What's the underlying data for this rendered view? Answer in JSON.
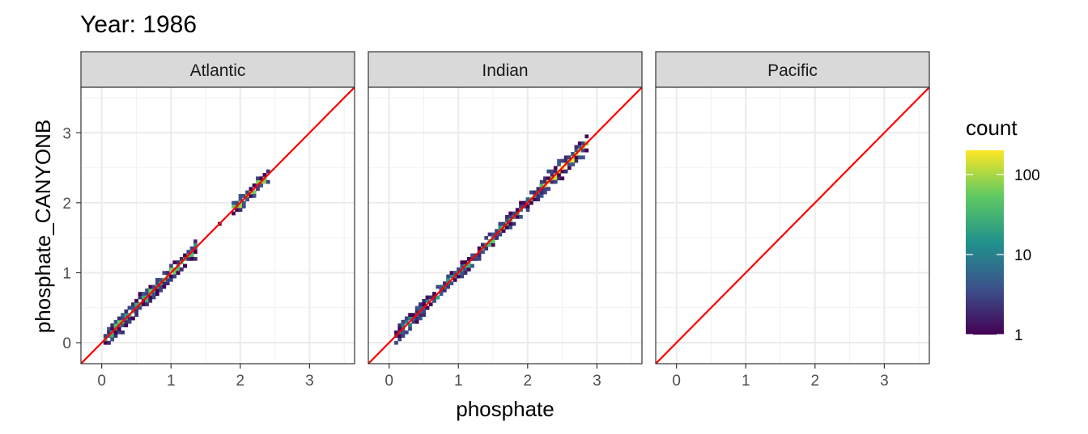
{
  "chart_data": {
    "type": "heatmap",
    "title": "Year: 1986",
    "xlabel": "phosphate",
    "ylabel": "phosphate_CANYONB",
    "xlim": [
      -0.3,
      3.65
    ],
    "ylim": [
      -0.3,
      3.65
    ],
    "x_ticks": [
      0,
      1,
      2,
      3
    ],
    "y_ticks": [
      0,
      1,
      2,
      3
    ],
    "grid": true,
    "bin_width": 0.05,
    "reference_line": {
      "slope": 1,
      "intercept": 0,
      "color": "#ff0000"
    },
    "legend": {
      "title": "count",
      "placement": "right",
      "scale": "log",
      "breaks": [
        1,
        10,
        100
      ],
      "break_labels": [
        "1",
        "10",
        "100"
      ],
      "max": 200,
      "colors": [
        "#440154",
        "#3b528b",
        "#21918c",
        "#5ec962",
        "#fde725"
      ]
    },
    "panels": [
      {
        "name": "Atlantic",
        "clusters": [
          {
            "x": [
              0.05,
              0.5
            ],
            "n": 18,
            "spread": 0.08,
            "peak": 40
          },
          {
            "x": [
              0.5,
              1.35
            ],
            "n": 36,
            "spread": 0.07,
            "peak": 60
          },
          {
            "x": [
              1.9,
              2.4
            ],
            "n": 20,
            "spread": 0.06,
            "peak": 120
          },
          {
            "x": [
              1.7,
              1.7
            ],
            "n": 1,
            "spread": 0.0,
            "peak": 1
          }
        ]
      },
      {
        "name": "Indian",
        "clusters": [
          {
            "x": [
              0.1,
              0.5
            ],
            "n": 14,
            "spread": 0.08,
            "peak": 10
          },
          {
            "x": [
              0.5,
              1.0
            ],
            "n": 16,
            "spread": 0.05,
            "peak": 20
          },
          {
            "x": [
              1.0,
              2.2
            ],
            "n": 48,
            "spread": 0.05,
            "peak": 40
          },
          {
            "x": [
              2.2,
              2.85
            ],
            "n": 28,
            "spread": 0.08,
            "peak": 160
          }
        ]
      },
      {
        "name": "Pacific",
        "clusters": []
      }
    ]
  }
}
